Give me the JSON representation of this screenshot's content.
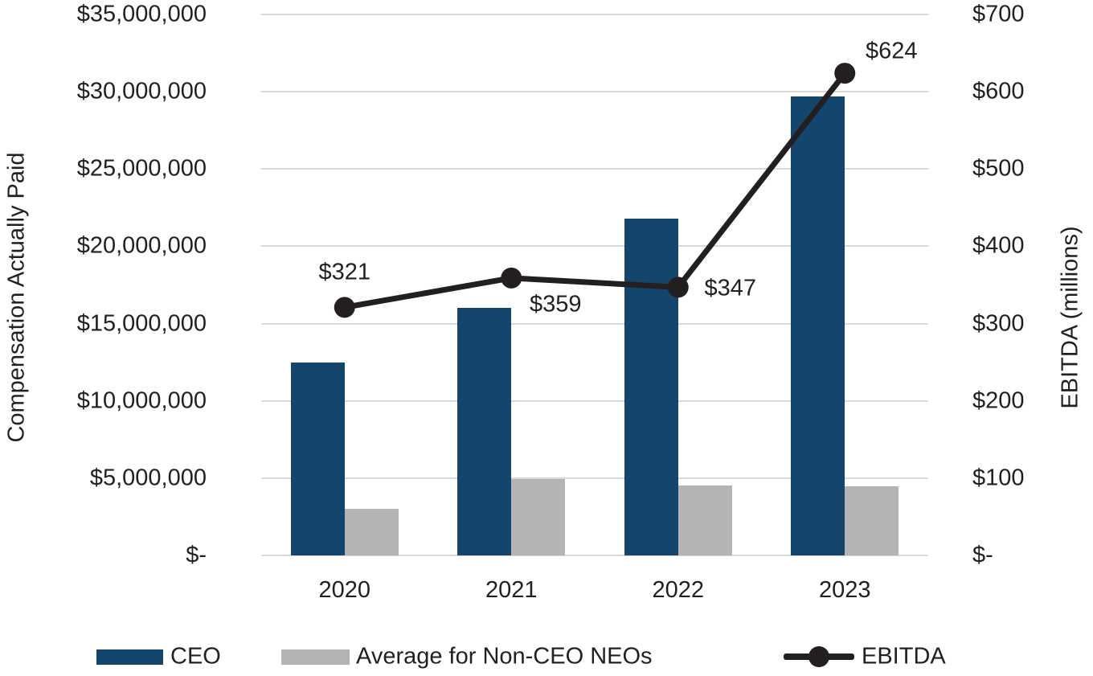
{
  "chart_data": {
    "type": "combo-bar-line",
    "categories": [
      "2020",
      "2021",
      "2022",
      "2023"
    ],
    "series": [
      {
        "name": "CEO",
        "type": "bar",
        "axis": "left",
        "color": "#14466d",
        "values": [
          12500000,
          16000000,
          21800000,
          29700000
        ]
      },
      {
        "name": "Average for Non-CEO NEOs",
        "type": "bar",
        "axis": "left",
        "color": "#b3b4b6",
        "values": [
          3000000,
          4950000,
          4500000,
          4450000
        ]
      },
      {
        "name": "EBITDA",
        "type": "line",
        "axis": "right",
        "color": "#231f20",
        "values": [
          321,
          359,
          347,
          624
        ],
        "point_labels": [
          "$321",
          "$359",
          "$347",
          "$624"
        ]
      }
    ],
    "left_axis": {
      "title": "Compensation Actually Paid",
      "min": 0,
      "max": 35000000,
      "step": 5000000,
      "tick_labels": [
        "$-",
        "$5,000,000",
        "$10,000,000",
        "$15,000,000",
        "$20,000,000",
        "$25,000,000",
        "$30,000,000",
        "$35,000,000"
      ]
    },
    "right_axis": {
      "title": "EBITDA (millions)",
      "min": 0,
      "max": 700,
      "step": 100,
      "tick_labels": [
        "$-",
        "$100",
        "$200",
        "$300",
        "$400",
        "$500",
        "$600",
        "$700"
      ]
    },
    "grid": true,
    "legend_position": "bottom",
    "colors": {
      "grid": "#d9d9d9",
      "text": "#231f20",
      "background": "#ffffff"
    }
  },
  "legend": {
    "items": [
      {
        "label": "CEO",
        "swatch": "bar",
        "color": "#14466d"
      },
      {
        "label": "Average for Non-CEO NEOs",
        "swatch": "bar",
        "color": "#b3b4b6"
      },
      {
        "label": "EBITDA",
        "swatch": "line-marker",
        "color": "#231f20"
      }
    ]
  }
}
